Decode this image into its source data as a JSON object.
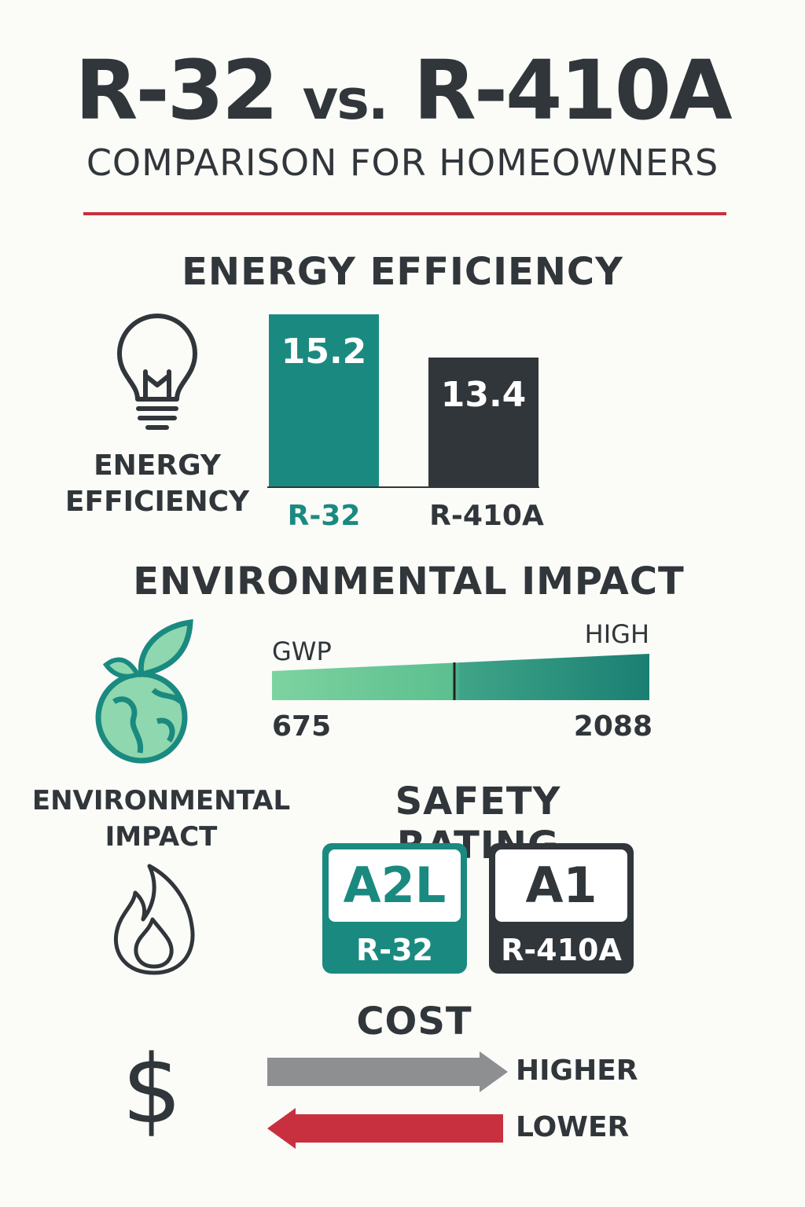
{
  "header": {
    "title_left": "R-32",
    "title_vs": "vs.",
    "title_right": "R-410A",
    "subtitle": "COMPARISON FOR HOMEOWNERS"
  },
  "colors": {
    "teal": "#1a8a80",
    "dark": "#30363a",
    "red": "#c8303f",
    "gray": "#8d8f91",
    "light_green": "#7dd3a0"
  },
  "energy": {
    "heading": "ENERGY EFFICIENCY",
    "icon": "lightbulb-icon",
    "label_line1": "ENERGY",
    "label_line2": "EFFICIENCY"
  },
  "chart_data": {
    "type": "bar",
    "title": "ENERGY EFFICIENCY",
    "categories": [
      "R-32",
      "R-410A"
    ],
    "values": [
      15.2,
      13.4
    ],
    "value_labels": [
      "15.2",
      "13.4"
    ],
    "colors": [
      "#1a8a80",
      "#30363a"
    ],
    "xlabel": "",
    "ylabel": "",
    "ylim": [
      8,
      15.2
    ],
    "grid": false
  },
  "environment": {
    "heading": "ENVIRONMENTAL IMPACT",
    "icon": "globe-leaf-icon",
    "scale_label": "GWP",
    "high_label": "HIGH",
    "low_value": "675",
    "high_value": "2088",
    "label_line1": "ENVIRONMENTAL",
    "label_line2": "IMPACT"
  },
  "safety": {
    "heading": "SAFETY RATING",
    "icon": "flame-icon",
    "badges": [
      {
        "rating": "A2L",
        "refrigerant": "R-32"
      },
      {
        "rating": "A1",
        "refrigerant": "R-410A"
      }
    ]
  },
  "cost": {
    "heading": "COST",
    "icon": "dollar-icon",
    "higher_label": "HIGHER",
    "lower_label": "LOWER"
  }
}
